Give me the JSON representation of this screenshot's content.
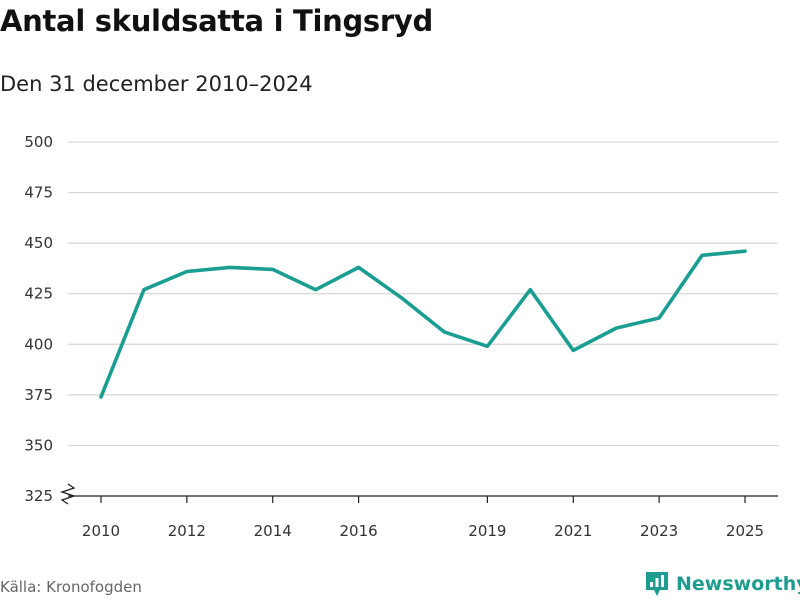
{
  "title": "Antal skuldsatta i Tingsryd",
  "subtitle": "Den 31 december 2010–2024",
  "source": "Källa: Kronofogden",
  "brand": {
    "name": "Newsworthy",
    "icon": "bar-chart-speech-icon"
  },
  "colors": {
    "line": "#1a9e92",
    "grid": "#d6d6d6",
    "axis": "#222222",
    "brand": "#1f9c90"
  },
  "chart_data": {
    "type": "line",
    "title": "Antal skuldsatta i Tingsryd",
    "subtitle": "Den 31 december 2010–2024",
    "xlabel": "",
    "ylabel": "",
    "x": [
      2010,
      2011,
      2012,
      2013,
      2014,
      2015,
      2016,
      2017,
      2018,
      2019,
      2020,
      2021,
      2022,
      2023,
      2024,
      2025
    ],
    "values": [
      374,
      427,
      436,
      438,
      437,
      427,
      438,
      423,
      406,
      399,
      427,
      397,
      408,
      413,
      444,
      446
    ],
    "xticks": [
      2010,
      2012,
      2014,
      2016,
      2019,
      2021,
      2023,
      2025
    ],
    "yticks": [
      325,
      350,
      375,
      400,
      425,
      450,
      475,
      500
    ],
    "ylim": [
      325,
      500
    ],
    "xlim": [
      2010,
      2025
    ],
    "y_axis_break": true,
    "grid": true,
    "legend": "none"
  }
}
